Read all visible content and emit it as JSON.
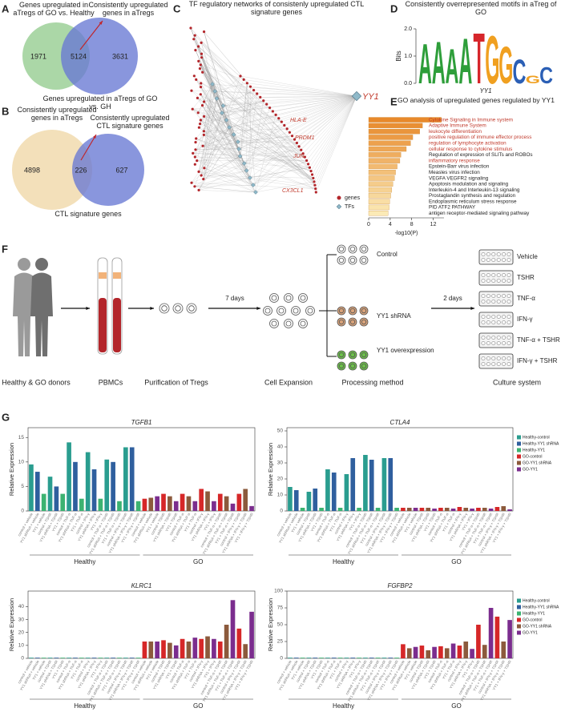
{
  "chart_data": [
    {
      "type": "venn",
      "label": "A",
      "sets": [
        {
          "name": "Genes upregulated in aTregs of GO vs. Healthy",
          "color": "#93cc8e"
        },
        {
          "name": "Genes upregulated in aTregs of GO vs. GH",
          "color": "#6879d4"
        }
      ],
      "values": [
        1971,
        5124,
        3631
      ],
      "annotation": "Consistently upregulated genes in aTregs"
    },
    {
      "type": "venn",
      "label": "B",
      "sets": [
        {
          "name": "Consistently upregulated genes in aTregs",
          "color": "#efd7a6"
        },
        {
          "name": "CTL signature genes",
          "color": "#6879d4"
        }
      ],
      "values": [
        4898,
        226,
        627
      ],
      "annotation": "Consistently upregulated CTL signature genes"
    },
    {
      "type": "network",
      "label": "C",
      "title": "TF regulatory networks of consistenly upregulated CTL signature genes",
      "hub": "YY1",
      "labels": [
        "HLA-E",
        "PRDM1",
        "JUN",
        "CX3CL1"
      ],
      "legend": [
        {
          "name": "genes",
          "color": "#b3262b"
        },
        {
          "name": "TFs",
          "color": "#8fb9c9"
        }
      ]
    },
    {
      "type": "motif",
      "label": "D",
      "title": "Consistently overrepresented motifs in aTreg of GO",
      "ylabel": "Bits",
      "xlabel": "YY1",
      "ylim": [
        0,
        2
      ],
      "yticks": [
        {
          "value": 0,
          "label": "0.0"
        },
        {
          "value": 1,
          "label": "1.0"
        },
        {
          "value": 2,
          "label": "2.0"
        }
      ],
      "letters": [
        "A",
        "A",
        "A",
        "A",
        "T",
        "G",
        "G",
        "C",
        "G",
        "C"
      ],
      "values": [
        1.5,
        1.6,
        1.3,
        1.7,
        1.9,
        1.8,
        1.4,
        0.9,
        0.3,
        0.6
      ],
      "letter_colors": {
        "A": "#2e9e3a",
        "C": "#2b5fb5",
        "G": "#f0a020",
        "T": "#d6262b"
      }
    },
    {
      "type": "bar",
      "orientation": "horizontal",
      "label": "E",
      "title": "GO analysis of upregulated genes regulated by YY1",
      "categories": [
        "Cytokine Signaling in Immune system",
        "Adaptive Immune System",
        "leukocyte differentiation",
        "positive regulation of immune effector process",
        "regulation of lymphocyte activation",
        "cellular response to cytokine stimulus",
        "Regulation of expression of SLITs and ROBOs",
        "inflammatory response",
        "Epstein-Barr virus infection",
        "Measles virus infection",
        "VEGFA VEGFR2 signaling",
        "Apoptosis modulation and signaling",
        "Interleukin-4 and Interleukin-13 signaling",
        "Prostaglandin synthesis and regulation",
        "Endoplasmic reticulum stress response",
        "PID ATF2 PATHWAY",
        "antigen receptor-mediated signaling pathway"
      ],
      "values": [
        13.5,
        10,
        9.5,
        8.2,
        7.8,
        7,
        6,
        5.8,
        5.3,
        5,
        4.8,
        4.5,
        4.3,
        4.1,
        3.9,
        3.8,
        3.6
      ],
      "highlighted": [
        true,
        true,
        true,
        true,
        true,
        true,
        false,
        true,
        false,
        false,
        false,
        false,
        false,
        false,
        false,
        false,
        false
      ],
      "highlight_color": "#c0392b",
      "color": [
        "#e8892b",
        "#fbeab6"
      ],
      "xlabel": "-log10(P)",
      "xlim": [
        0,
        14
      ],
      "xticks": [
        0,
        4,
        8,
        12
      ]
    },
    {
      "type": "bar",
      "label": "G",
      "title": "TGFB1",
      "ylabel": "Relative Expression",
      "ylim": [
        0,
        17
      ],
      "yticks": [
        0,
        5,
        10,
        15
      ],
      "groups": [
        "Healthy",
        "GO"
      ],
      "colors": [
        "#2a9d8f",
        "#2f5f9e",
        "#3cb371",
        "#d62728",
        "#8c5a3c",
        "#7b2d8e"
      ],
      "categories": [
        "control + vehicle",
        "YY1 shRNA + vehicle",
        "YY1 + vehicle",
        "control + TSHR",
        "YY1 shRNA + TSHR",
        "YY1 + TSHR",
        "control + TNF-α",
        "YY1 shRNA + TNF-α",
        "YY1 + TNF-α",
        "control + IFN-γ",
        "YY1 shRNA + IFN-γ",
        "YY1 + IFN-γ",
        "control + TNF-α + TSHR",
        "YY1 shRNA + TNF-α + TSHR",
        "YY1 + TNF-α + TSHR",
        "control + IFN-γ + TSHR",
        "YY1 shRNA + IFN-γ + TSHR",
        "YY1 + IFN-γ + TSHR",
        "control + vehicle",
        "YY1 shRNA + vehicle",
        "YY1 + vehicle",
        "control + TSHR",
        "YY1 shRNA + TSHR",
        "YY1 + TSHR",
        "control + TNF-α",
        "YY1 shRNA + TNF-α",
        "YY1 + TNF-α",
        "control + IFN-γ",
        "YY1 shRNA + IFN-γ",
        "YY1 + IFN-γ",
        "control + TNF-α + TSHR",
        "YY1 shRNA + TNF-α + TSHR",
        "YY1 + TNF-α + TSHR",
        "control + IFN-γ + TSHR",
        "YY1 shRNA + IFN-γ + TSHR",
        "YY1 + IFN-γ + TSHR"
      ],
      "values": [
        9.5,
        8,
        3.5,
        7,
        5,
        3.5,
        14,
        10,
        2.5,
        12,
        8.5,
        2.5,
        10.5,
        10,
        2,
        13,
        13,
        2,
        2.5,
        2.7,
        3,
        3.5,
        3,
        2,
        3.5,
        3,
        2,
        4.5,
        4,
        2,
        3.5,
        3,
        1.5,
        3.5,
        4.5,
        1
      ]
    },
    {
      "type": "bar",
      "title": "CTLA4",
      "ylabel": "Relative Expression",
      "ylim": [
        0,
        52
      ],
      "yticks": [
        0,
        10,
        20,
        30,
        40,
        50
      ],
      "groups": [
        "Healthy",
        "GO"
      ],
      "series": [
        {
          "name": "Healthy-control",
          "color": "#2a9d8f"
        },
        {
          "name": "Healthy-YY1 shRNA",
          "color": "#2f5f9e"
        },
        {
          "name": "Healthy-YY1",
          "color": "#3cb371"
        },
        {
          "name": "GO-control",
          "color": "#d62728"
        },
        {
          "name": "GO-YY1 shRNA",
          "color": "#8c5a3c"
        },
        {
          "name": "GO-YY1",
          "color": "#7b2d8e"
        }
      ],
      "categories": [
        "control + vehicle",
        "YY1 shRNA + vehicle",
        "YY1 + vehicle",
        "control + TSHR",
        "YY1 shRNA + TSHR",
        "YY1 + TSHR",
        "control + TNF-α",
        "YY1 shRNA + TNF-α",
        "YY1 + TNF-α",
        "control + IFN-γ",
        "YY1 shRNA + IFN-γ",
        "YY1 + IFN-γ",
        "control + TNF-α + TSHR",
        "YY1 shRNA + TNF-α + TSHR",
        "YY1 + TNF-α + TSHR",
        "control + IFN-γ + TSHR",
        "YY1 shRNA + IFN-γ + TSHR",
        "YY1 + IFN-γ + TSHR",
        "control + vehicle",
        "YY1 shRNA + vehicle",
        "YY1 + vehicle",
        "control + TSHR",
        "YY1 shRNA + TSHR",
        "YY1 + TSHR",
        "control + TNF-α",
        "YY1 shRNA + TNF-α",
        "YY1 + TNF-α",
        "control + IFN-γ",
        "YY1 shRNA + IFN-γ",
        "YY1 + IFN-γ",
        "control + TNF-α + TSHR",
        "YY1 shRNA + TNF-α + TSHR",
        "YY1 + TNF-α + TSHR",
        "control + IFN-γ + TSHR",
        "YY1 shRNA + IFN-γ + TSHR",
        "YY1 + IFN-γ + TSHR"
      ],
      "values": [
        15,
        13,
        2,
        12,
        14,
        2,
        26,
        24,
        2,
        23,
        33,
        2,
        35,
        32,
        2,
        33,
        33,
        2,
        2,
        2,
        2,
        2,
        2,
        1.5,
        2,
        2,
        1.5,
        2.5,
        2,
        1.5,
        2,
        2,
        1.5,
        2.5,
        3,
        1
      ]
    },
    {
      "type": "bar",
      "title": "KLRC1",
      "ylabel": "Relative Expression",
      "ylim": [
        0,
        52
      ],
      "yticks": [
        0,
        10,
        20,
        30,
        40
      ],
      "groups": [
        "Healthy",
        "GO"
      ],
      "colors": [
        "#2a9d8f",
        "#2f5f9e",
        "#3cb371",
        "#d62728",
        "#8c5a3c",
        "#7b2d8e"
      ],
      "categories": [
        "control + vehicle",
        "YY1 shRNA + vehicle",
        "YY1 + vehicle",
        "control + TSHR",
        "YY1 shRNA + TSHR",
        "YY1 + TSHR",
        "control + TNF-α",
        "YY1 shRNA + TNF-α",
        "YY1 + TNF-α",
        "control + IFN-γ",
        "YY1 shRNA + IFN-γ",
        "YY1 + IFN-γ",
        "control + TNF-α + TSHR",
        "YY1 shRNA + TNF-α + TSHR",
        "YY1 + TNF-α + TSHR",
        "control + IFN-γ + TSHR",
        "YY1 shRNA + IFN-γ + TSHR",
        "YY1 + IFN-γ + TSHR",
        "control + vehicle",
        "YY1 shRNA + vehicle",
        "YY1 + vehicle",
        "control + TSHR",
        "YY1 shRNA + TSHR",
        "YY1 + TSHR",
        "control + TNF-α",
        "YY1 shRNA + TNF-α",
        "YY1 + TNF-α",
        "control + IFN-γ",
        "YY1 shRNA + IFN-γ",
        "YY1 + IFN-γ",
        "control + TNF-α + TSHR",
        "YY1 shRNA + TNF-α + TSHR",
        "YY1 + TNF-α + TSHR",
        "control + IFN-γ + TSHR",
        "YY1 shRNA + IFN-γ + TSHR",
        "YY1 + IFN-γ + TSHR"
      ],
      "values": [
        0.5,
        0.5,
        0.5,
        0.5,
        0.5,
        0.5,
        0.5,
        0.5,
        0.5,
        0.5,
        0.5,
        0.5,
        0.5,
        0.5,
        0.5,
        0.5,
        0.5,
        0.5,
        13,
        13,
        13,
        14,
        12,
        10,
        15,
        13,
        16,
        15,
        17,
        15,
        13,
        26,
        45,
        23,
        11,
        36
      ]
    },
    {
      "type": "bar",
      "title": "FGFBP2",
      "ylabel": "Relative Expression",
      "ylim": [
        0,
        100
      ],
      "yticks": [
        0,
        25,
        50,
        75,
        100
      ],
      "groups": [
        "Healthy",
        "GO"
      ],
      "series": [
        {
          "name": "Healthy-control",
          "color": "#2a9d8f"
        },
        {
          "name": "Healthy-YY1 shRNA",
          "color": "#2f5f9e"
        },
        {
          "name": "Healthy-YY1",
          "color": "#3cb371"
        },
        {
          "name": "GO-control",
          "color": "#d62728"
        },
        {
          "name": "GO-YY1 shRNA",
          "color": "#8c5a3c"
        },
        {
          "name": "GO-YY1",
          "color": "#7b2d8e"
        }
      ],
      "categories": [
        "control + vehicle",
        "YY1 shRNA + vehicle",
        "YY1 + vehicle",
        "control + TSHR",
        "YY1 shRNA + TSHR",
        "YY1 + TSHR",
        "control + TNF-α",
        "YY1 shRNA + TNF-α",
        "YY1 + TNF-α",
        "control + IFN-γ",
        "YY1 shRNA + IFN-γ",
        "YY1 + IFN-γ",
        "control + TNF-α + TSHR",
        "YY1 shRNA + TNF-α + TSHR",
        "YY1 + TNF-α + TSHR",
        "control + IFN-γ + TSHR",
        "YY1 shRNA + IFN-γ + TSHR",
        "YY1 + IFN-γ + TSHR",
        "control + vehicle",
        "YY1 shRNA + vehicle",
        "YY1 + vehicle",
        "control + TSHR",
        "YY1 shRNA + TSHR",
        "YY1 + TSHR",
        "control + TNF-α",
        "YY1 shRNA + TNF-α",
        "YY1 + TNF-α",
        "control + IFN-γ",
        "YY1 shRNA + IFN-γ",
        "YY1 + IFN-γ",
        "control + TNF-α + TSHR",
        "YY1 shRNA + TNF-α + TSHR",
        "YY1 + TNF-α + TSHR",
        "control + IFN-γ + TSHR",
        "YY1 shRNA + IFN-γ + TSHR",
        "YY1 + IFN-γ + TSHR"
      ],
      "values": [
        1,
        1,
        1,
        1,
        1,
        1,
        1,
        1,
        1,
        1,
        1,
        1,
        1,
        1,
        1,
        1,
        1,
        1,
        21,
        15,
        17,
        19,
        12,
        17,
        18,
        15,
        22,
        19,
        25,
        14,
        50,
        20,
        75,
        62,
        25,
        57
      ]
    }
  ],
  "diagram": {
    "label": "F",
    "steps": [
      "Healthy & GO donors",
      "PBMCs",
      "Purification of Tregs",
      "Cell Expansion",
      "Processing method",
      "Culture system"
    ],
    "arrow_labels": [
      "7 days",
      "2 days"
    ],
    "methods": [
      "Control",
      "YY1 shRNA",
      "YY1 overexpression"
    ],
    "conditions": [
      "Vehicle",
      "TSHR",
      "TNF-α",
      "IFN-γ",
      "TNF-α + TSHR",
      "IFN-γ + TSHR"
    ]
  }
}
